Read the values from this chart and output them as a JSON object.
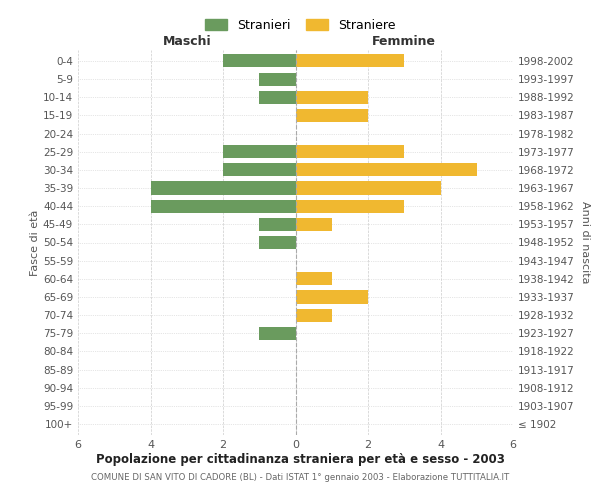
{
  "age_groups": [
    "100+",
    "95-99",
    "90-94",
    "85-89",
    "80-84",
    "75-79",
    "70-74",
    "65-69",
    "60-64",
    "55-59",
    "50-54",
    "45-49",
    "40-44",
    "35-39",
    "30-34",
    "25-29",
    "20-24",
    "15-19",
    "10-14",
    "5-9",
    "0-4"
  ],
  "birth_years": [
    "≤ 1902",
    "1903-1907",
    "1908-1912",
    "1913-1917",
    "1918-1922",
    "1923-1927",
    "1928-1932",
    "1933-1937",
    "1938-1942",
    "1943-1947",
    "1948-1952",
    "1953-1957",
    "1958-1962",
    "1963-1967",
    "1968-1972",
    "1973-1977",
    "1978-1982",
    "1983-1987",
    "1988-1992",
    "1993-1997",
    "1998-2002"
  ],
  "maschi": [
    0,
    0,
    0,
    0,
    0,
    1,
    0,
    0,
    0,
    0,
    1,
    1,
    4,
    4,
    2,
    2,
    0,
    0,
    1,
    1,
    2
  ],
  "femmine": [
    0,
    0,
    0,
    0,
    0,
    0,
    1,
    2,
    1,
    0,
    0,
    1,
    3,
    4,
    5,
    3,
    0,
    2,
    2,
    0,
    3
  ],
  "male_color": "#6a9b5e",
  "female_color": "#f0b830",
  "title": "Popolazione per cittadinanza straniera per età e sesso - 2003",
  "subtitle": "COMUNE DI SAN VITO DI CADORE (BL) - Dati ISTAT 1° gennaio 2003 - Elaborazione TUTTITALIA.IT",
  "xlabel_left": "Maschi",
  "xlabel_right": "Femmine",
  "ylabel_left": "Fasce di età",
  "ylabel_right": "Anni di nascita",
  "legend_male": "Stranieri",
  "legend_female": "Straniere",
  "xlim": 6,
  "background_color": "#ffffff",
  "grid_color": "#cccccc"
}
